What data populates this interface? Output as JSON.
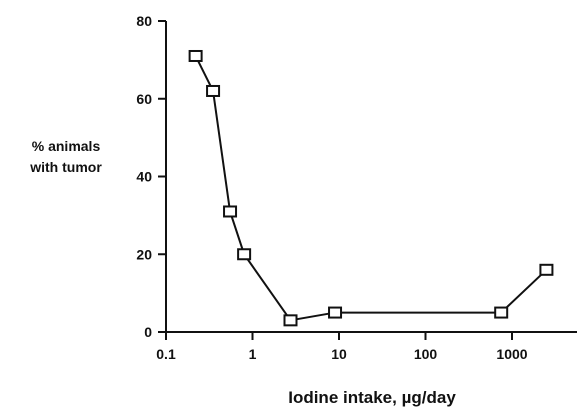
{
  "chart_data": {
    "type": "line",
    "title": "",
    "xlabel": "Iodine intake, µg/day",
    "ylabel_lines": [
      "% animals",
      "with tumor"
    ],
    "x_scale": "log",
    "xlim": [
      0.1,
      3000
    ],
    "ylim": [
      0,
      80
    ],
    "x_ticks": [
      0.1,
      1,
      10,
      100,
      1000
    ],
    "x_tick_labels": [
      "0.1",
      "1",
      "10",
      "100",
      "1000"
    ],
    "y_ticks": [
      0,
      20,
      40,
      60,
      80
    ],
    "y_tick_labels": [
      "0",
      "20",
      "40",
      "60",
      "80"
    ],
    "grid": false,
    "marker": "open-square",
    "series": [
      {
        "x": [
          0.22,
          0.35,
          0.55,
          0.8,
          2.75,
          9,
          750,
          2500
        ],
        "y": [
          71,
          62,
          31,
          20,
          3,
          5,
          5,
          16
        ]
      }
    ]
  }
}
